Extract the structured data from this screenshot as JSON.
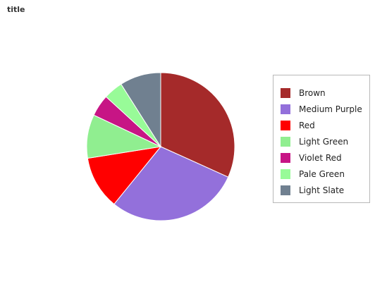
{
  "chart_data": {
    "type": "pie",
    "title": "title",
    "categories": [
      "Brown",
      "Medium Purple",
      "Red",
      "Light Green",
      "Violet Red",
      "Pale Green",
      "Light Slate"
    ],
    "values": [
      30,
      27.5,
      11,
      9,
      4.5,
      4,
      8.5
    ],
    "colors": [
      "#a52a2a",
      "#9370db",
      "#ff0000",
      "#90ee90",
      "#c71585",
      "#98fb98",
      "#708090"
    ],
    "start_angle_deg": 0,
    "direction": "clockwise",
    "legend_position": "right"
  }
}
